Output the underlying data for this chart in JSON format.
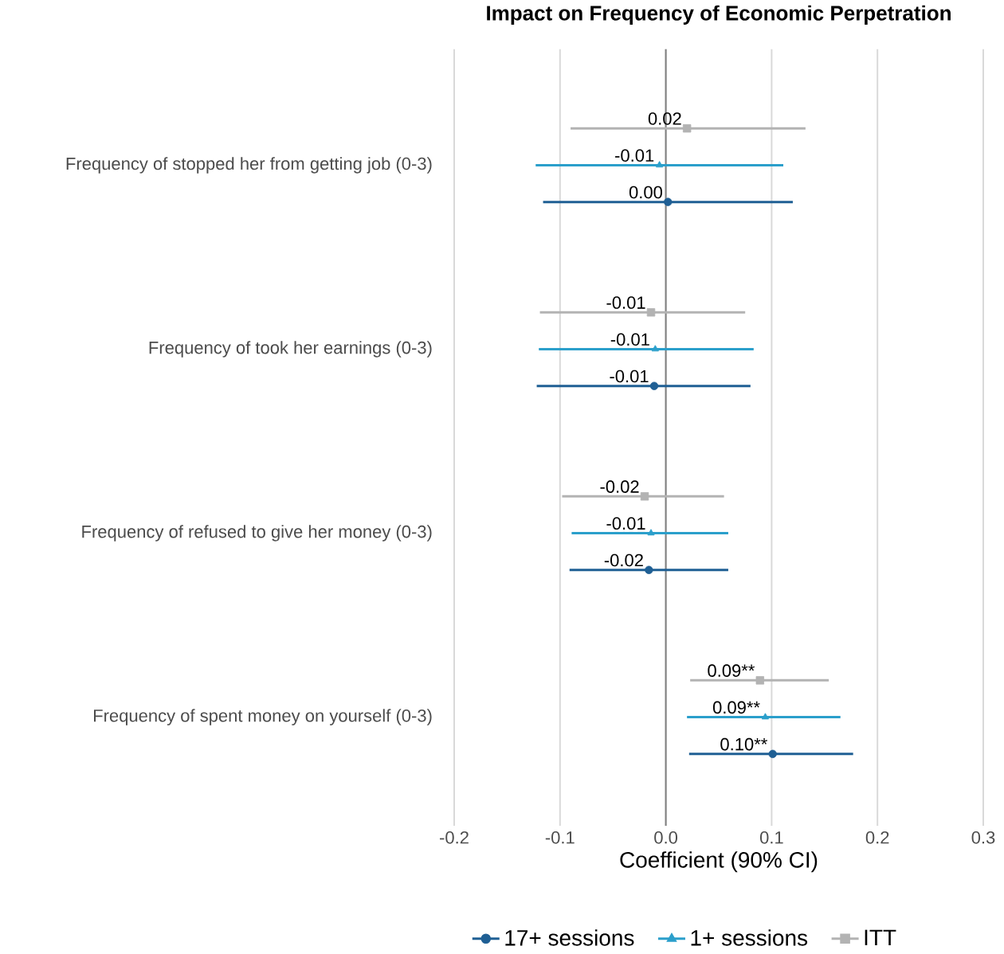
{
  "chart_data": {
    "type": "scatter",
    "orientation": "horizontal",
    "title": "Impact on Frequency of Economic Perpetration",
    "xlabel": "Coefficient (90% CI)",
    "categories": [
      "Frequency of stopped her from getting job (0-3)",
      "Frequency of took her earnings (0-3)",
      "Frequency of refused to give her money (0-3)",
      "Frequency of spent money on yourself (0-3)"
    ],
    "series": [
      {
        "name": "17+ sessions",
        "color": "#1f5f94",
        "marker": "circle",
        "values": [
          0.002,
          -0.011,
          -0.016,
          0.101
        ],
        "errors": [
          [
            -0.116,
            0.12
          ],
          [
            -0.122,
            0.08
          ],
          [
            -0.091,
            0.059
          ],
          [
            0.022,
            0.177
          ]
        ],
        "value_labels": [
          "0.00",
          "-0.01",
          "-0.02",
          "0.10**"
        ]
      },
      {
        "name": "1+ sessions",
        "color": "#2b9fcb",
        "marker": "triangle",
        "values": [
          -0.006,
          -0.01,
          -0.014,
          0.094
        ],
        "errors": [
          [
            -0.123,
            0.111
          ],
          [
            -0.12,
            0.083
          ],
          [
            -0.089,
            0.059
          ],
          [
            0.02,
            0.165
          ]
        ],
        "value_labels": [
          "-0.01",
          "-0.01",
          "-0.01",
          "0.09**"
        ]
      },
      {
        "name": "ITT",
        "color": "#b3b3b3",
        "marker": "square",
        "values": [
          0.02,
          -0.014,
          -0.02,
          0.089
        ],
        "errors": [
          [
            -0.09,
            0.132
          ],
          [
            -0.119,
            0.075
          ],
          [
            -0.098,
            0.055
          ],
          [
            0.023,
            0.154
          ]
        ],
        "value_labels": [
          "0.02",
          "-0.01",
          "-0.02",
          "0.09**"
        ]
      }
    ],
    "xlim": [
      -0.2,
      0.3
    ],
    "xticks": [
      {
        "value": -0.2,
        "label": "-0.2"
      },
      {
        "value": -0.1,
        "label": "-0.1"
      },
      {
        "value": 0,
        "label": "0.0"
      },
      {
        "value": 0.1,
        "label": "0.1"
      },
      {
        "value": 0.2,
        "label": "0.2"
      },
      {
        "value": 0.3,
        "label": "0.3"
      }
    ],
    "ref_lines": [
      {
        "axis": "x",
        "value": 0,
        "color": "#808080"
      }
    ],
    "grid": "x",
    "legend": "bottom"
  }
}
